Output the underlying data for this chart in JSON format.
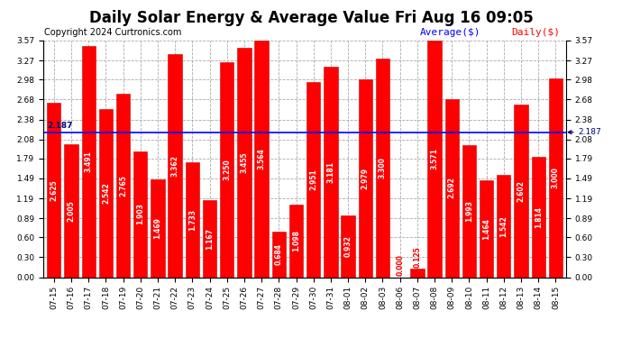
{
  "title": "Daily Solar Energy & Average Value Fri Aug 16 09:05",
  "copyright": "Copyright 2024 Curtronics.com",
  "legend_average": "Average($)",
  "legend_daily": "Daily($)",
  "average_value": 2.187,
  "categories": [
    "07-15",
    "07-16",
    "07-17",
    "07-18",
    "07-19",
    "07-20",
    "07-21",
    "07-22",
    "07-23",
    "07-24",
    "07-25",
    "07-26",
    "07-27",
    "07-28",
    "07-29",
    "07-30",
    "07-31",
    "08-01",
    "08-02",
    "08-03",
    "08-06",
    "08-07",
    "08-08",
    "08-09",
    "08-10",
    "08-11",
    "08-12",
    "08-13",
    "08-14",
    "08-15"
  ],
  "values": [
    2.625,
    2.005,
    3.491,
    2.542,
    2.765,
    1.903,
    1.469,
    3.362,
    1.733,
    1.167,
    3.25,
    3.455,
    3.564,
    0.684,
    1.098,
    2.951,
    3.181,
    0.932,
    2.979,
    3.3,
    0.0,
    0.125,
    3.571,
    2.692,
    1.993,
    1.464,
    1.542,
    2.602,
    1.814,
    3.0
  ],
  "bar_color": "#ff0000",
  "bar_edge_color": "#cc0000",
  "average_line_color": "#0000ff",
  "average_label_color": "#000080",
  "ylim": [
    0,
    3.57
  ],
  "yticks": [
    0.0,
    0.3,
    0.6,
    0.89,
    1.19,
    1.49,
    1.79,
    2.08,
    2.38,
    2.68,
    2.98,
    3.27,
    3.57
  ],
  "grid_color": "#aaaaaa",
  "background_color": "#ffffff",
  "title_fontsize": 12,
  "copyright_fontsize": 7,
  "legend_fontsize": 8,
  "tick_fontsize": 6.5,
  "bar_label_fontsize": 5.5
}
